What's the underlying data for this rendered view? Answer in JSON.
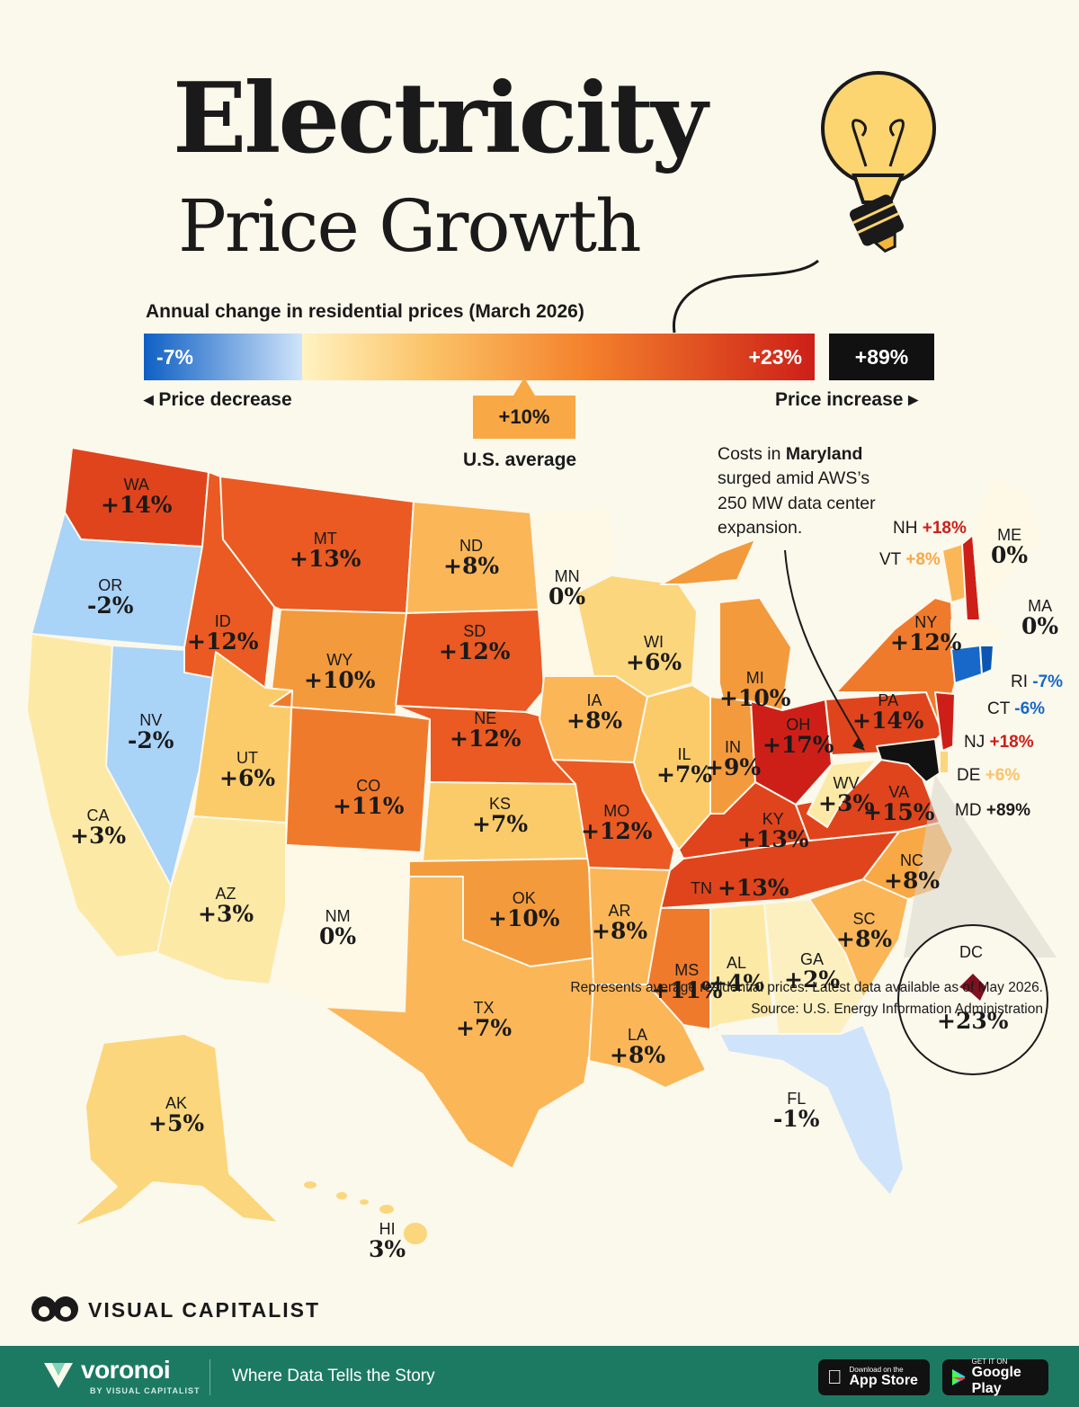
{
  "title_line1": "Electricity",
  "title_line2": "Price Growth",
  "subtitle": "Annual change in residential prices (March 2026)",
  "legend": {
    "min_label": "-7%",
    "max_label": "+23%",
    "outlier_label": "+89%",
    "decrease_label": "◂ Price decrease",
    "increase_label": "Price increase ▸",
    "average_value": "+10%",
    "average_label": "U.S. average"
  },
  "annotation": {
    "line1_pre": "Costs in ",
    "line1_bold": "Maryland",
    "line2": "surged amid AWS’s",
    "line3": "250 MW data center",
    "line4": "expansion."
  },
  "states": [
    {
      "abbr": "WA",
      "value": "+14%"
    },
    {
      "abbr": "OR",
      "value": "-2%"
    },
    {
      "abbr": "CA",
      "value": "+3%"
    },
    {
      "abbr": "NV",
      "value": "-2%"
    },
    {
      "abbr": "ID",
      "value": "+12%"
    },
    {
      "abbr": "MT",
      "value": "+13%"
    },
    {
      "abbr": "WY",
      "value": "+10%"
    },
    {
      "abbr": "UT",
      "value": "+6%"
    },
    {
      "abbr": "AZ",
      "value": "+3%"
    },
    {
      "abbr": "CO",
      "value": "+11%"
    },
    {
      "abbr": "NM",
      "value": "0%"
    },
    {
      "abbr": "ND",
      "value": "+8%"
    },
    {
      "abbr": "SD",
      "value": "+12%"
    },
    {
      "abbr": "NE",
      "value": "+12%"
    },
    {
      "abbr": "KS",
      "value": "+7%"
    },
    {
      "abbr": "OK",
      "value": "+10%"
    },
    {
      "abbr": "TX",
      "value": "+7%"
    },
    {
      "abbr": "MN",
      "value": "0%"
    },
    {
      "abbr": "IA",
      "value": "+8%"
    },
    {
      "abbr": "MO",
      "value": "+12%"
    },
    {
      "abbr": "AR",
      "value": "+8%"
    },
    {
      "abbr": "LA",
      "value": "+8%"
    },
    {
      "abbr": "WI",
      "value": "+6%"
    },
    {
      "abbr": "IL",
      "value": "+7%"
    },
    {
      "abbr": "MI",
      "value": "+10%"
    },
    {
      "abbr": "IN",
      "value": "+9%"
    },
    {
      "abbr": "OH",
      "value": "+17%"
    },
    {
      "abbr": "KY",
      "value": "+13%"
    },
    {
      "abbr": "TN",
      "value": "+13%"
    },
    {
      "abbr": "MS",
      "value": "+11%"
    },
    {
      "abbr": "AL",
      "value": "+4%"
    },
    {
      "abbr": "GA",
      "value": "+2%"
    },
    {
      "abbr": "FL",
      "value": "-1%"
    },
    {
      "abbr": "SC",
      "value": "+8%"
    },
    {
      "abbr": "NC",
      "value": "+8%"
    },
    {
      "abbr": "VA",
      "value": "+15%"
    },
    {
      "abbr": "WV",
      "value": "+3%"
    },
    {
      "abbr": "PA",
      "value": "+14%"
    },
    {
      "abbr": "NY",
      "value": "+12%"
    },
    {
      "abbr": "AK",
      "value": "+5%"
    },
    {
      "abbr": "HI",
      "value": "3%"
    },
    {
      "abbr": "DC",
      "value": "+23%"
    }
  ],
  "side_labels": [
    {
      "abbr": "ME",
      "value": "0%"
    },
    {
      "abbr": "NH",
      "value": "+18%"
    },
    {
      "abbr": "VT",
      "value": "+8%"
    },
    {
      "abbr": "MA",
      "value": "0%"
    },
    {
      "abbr": "RI",
      "value": "-7%"
    },
    {
      "abbr": "CT",
      "value": "-6%"
    },
    {
      "abbr": "NJ",
      "value": "+18%"
    },
    {
      "abbr": "DE",
      "value": "+6%"
    },
    {
      "abbr": "MD",
      "value": "+89%"
    }
  ],
  "colors": {
    "background": "#fbf8ec",
    "neg_strong": "#0e5fc4",
    "neg_light": "#cfe4fa",
    "zero": "#fdf9e6",
    "low": "#fbe39a",
    "mid": "#f8a844",
    "high": "#f07a2c",
    "very_high": "#e0441c",
    "top": "#cd1f18",
    "outlier": "#111111",
    "dc": "#7e1020"
  },
  "footer": {
    "note": "Represents average residential prices. Latest data available as of May 2026.",
    "source": "Source: U.S. Energy Information Administration",
    "brand": "VISUAL CAPITALIST"
  },
  "bottom_bar": {
    "brand": "voronoi",
    "brand_sub": "BY VISUAL CAPITALIST",
    "tagline": "Where Data Tells the Story",
    "app_store_small": "Download on the",
    "app_store_big": "App Store",
    "play_small": "GET IT ON",
    "play_big": "Google Play"
  }
}
